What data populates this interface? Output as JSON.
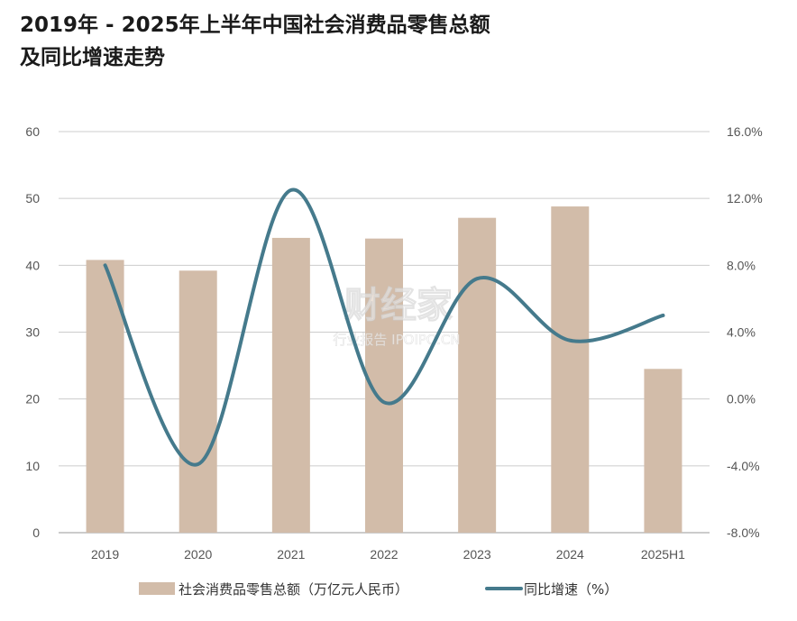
{
  "chart_data": {
    "type": "bar+line",
    "title_lines": [
      "2019年 - 2025年上半年中国社会消费品零售总额",
      "及同比增速走势"
    ],
    "categories": [
      "2019",
      "2020",
      "2021",
      "2022",
      "2023",
      "2024",
      "2025H1"
    ],
    "series": [
      {
        "name": "社会消费品零售总额（万亿元人民币）",
        "type": "bar",
        "axis": "left",
        "values": [
          40.8,
          39.2,
          44.1,
          44.0,
          47.1,
          48.8,
          24.5
        ]
      },
      {
        "name": "同比增速（%）",
        "type": "line",
        "axis": "right",
        "values": [
          8.0,
          -3.9,
          12.5,
          -0.2,
          7.2,
          3.5,
          5.0
        ]
      }
    ],
    "y_left": {
      "ylim": [
        0,
        60
      ],
      "ticks": [
        "0",
        "10",
        "20",
        "30",
        "40",
        "50",
        "60"
      ]
    },
    "y_right": {
      "ylim": [
        -8,
        16
      ],
      "ticks": [
        "-8.0%",
        "-4.0%",
        "0.0%",
        "4.0%",
        "8.0%",
        "12.0%",
        "16.0%"
      ]
    },
    "grid": true,
    "legend_position": "bottom",
    "colors": {
      "bar": "#d2bca9",
      "line": "#457a8c",
      "grid": "#cccccc",
      "axis": "#999999"
    }
  },
  "watermark": {
    "main": "财经家",
    "sub": "行业报告 IPOIPO.CN"
  }
}
